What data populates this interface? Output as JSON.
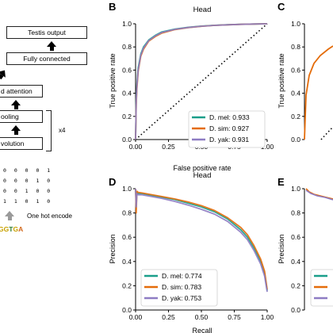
{
  "architecture": {
    "blocks": [
      "Testis output",
      "Fully connected",
      "d attention",
      "ooling",
      "volution"
    ],
    "repeat_label": "x4",
    "encode_label": "One hot encode",
    "matrix_rows": [
      "0 0 0 0 1",
      "0 0 0 1 0",
      "0 0 1 0 0",
      "1 1 0 1 0"
    ],
    "sequence": [
      {
        "base": "G",
        "color": "#c8a100"
      },
      {
        "base": "G",
        "color": "#c8a100"
      },
      {
        "base": "T",
        "color": "#2e7d32"
      },
      {
        "base": "G",
        "color": "#c8a100"
      },
      {
        "base": "A",
        "color": "#d2691e"
      }
    ]
  },
  "panels": {
    "B": {
      "letter": "B",
      "title": "Head",
      "legend": [
        "D. mel: 0.933",
        "D. sim: 0.927",
        "D. yak: 0.931"
      ]
    },
    "C": {
      "letter": "C"
    },
    "D": {
      "letter": "D",
      "title": "Head",
      "legend": [
        "D. mel: 0.774",
        "D. sim: 0.783",
        "D. yak: 0.753"
      ]
    },
    "E": {
      "letter": "E"
    }
  },
  "colors": {
    "d_mel": "#1a9e8a",
    "d_sim": "#e46c0a",
    "d_yak": "#8e7cc3"
  },
  "chart_data": [
    {
      "type": "line",
      "panel": "B",
      "title": "Head",
      "xlabel": "False positive rate",
      "ylabel": "True positive rate",
      "xlim": [
        0,
        1
      ],
      "ylim": [
        0,
        1
      ],
      "xticks": [
        "0.00",
        "0.25",
        "0.50",
        "0.75",
        "1.00"
      ],
      "yticks": [
        "0.0",
        "0.2",
        "0.4",
        "0.6",
        "0.8",
        "1.0"
      ],
      "legend_position": "bottom-right",
      "series": [
        {
          "name": "D. mel: 0.933",
          "x": [
            0,
            0.005,
            0.01,
            0.02,
            0.04,
            0.06,
            0.1,
            0.15,
            0.2,
            0.3,
            0.4,
            0.5,
            0.6,
            0.7,
            0.8,
            0.9,
            1.0
          ],
          "y": [
            0,
            0.35,
            0.48,
            0.62,
            0.74,
            0.8,
            0.86,
            0.9,
            0.93,
            0.955,
            0.97,
            0.98,
            0.987,
            0.992,
            0.996,
            0.998,
            1.0
          ]
        },
        {
          "name": "D. sim: 0.927",
          "x": [
            0,
            0.005,
            0.01,
            0.02,
            0.04,
            0.06,
            0.1,
            0.15,
            0.2,
            0.3,
            0.4,
            0.5,
            0.6,
            0.7,
            0.8,
            0.9,
            1.0
          ],
          "y": [
            0,
            0.3,
            0.44,
            0.59,
            0.72,
            0.78,
            0.85,
            0.89,
            0.92,
            0.95,
            0.967,
            0.978,
            0.986,
            0.991,
            0.995,
            0.998,
            1.0
          ]
        },
        {
          "name": "D. yak: 0.931",
          "x": [
            0,
            0.005,
            0.01,
            0.02,
            0.04,
            0.06,
            0.1,
            0.15,
            0.2,
            0.3,
            0.4,
            0.5,
            0.6,
            0.7,
            0.8,
            0.9,
            1.0
          ],
          "y": [
            0,
            0.32,
            0.46,
            0.6,
            0.73,
            0.79,
            0.855,
            0.895,
            0.925,
            0.952,
            0.968,
            0.979,
            0.986,
            0.991,
            0.995,
            0.998,
            1.0
          ]
        }
      ],
      "reference_line": {
        "x": [
          0,
          1
        ],
        "y": [
          0,
          1
        ],
        "style": "dotted"
      }
    },
    {
      "type": "line",
      "panel": "D",
      "title": "Head",
      "xlabel": "Recall",
      "ylabel": "Precision",
      "xlim": [
        0,
        1
      ],
      "ylim": [
        0,
        1
      ],
      "xticks": [
        "0.00",
        "0.25",
        "0.50",
        "0.75",
        "1.00"
      ],
      "yticks": [
        "0.0",
        "0.2",
        "0.4",
        "0.6",
        "0.8",
        "1.0"
      ],
      "legend_position": "bottom-left",
      "series": [
        {
          "name": "D. mel: 0.774",
          "x": [
            0,
            0.005,
            0.01,
            0.02,
            0.05,
            0.1,
            0.2,
            0.3,
            0.4,
            0.5,
            0.6,
            0.7,
            0.8,
            0.85,
            0.9,
            0.95,
            0.98,
            1.0
          ],
          "y": [
            1.0,
            0.88,
            0.97,
            0.96,
            0.96,
            0.95,
            0.93,
            0.91,
            0.88,
            0.85,
            0.81,
            0.75,
            0.66,
            0.6,
            0.51,
            0.4,
            0.3,
            0.16
          ]
        },
        {
          "name": "D. sim: 0.783",
          "x": [
            0,
            0.005,
            0.01,
            0.02,
            0.05,
            0.1,
            0.2,
            0.3,
            0.4,
            0.5,
            0.6,
            0.7,
            0.8,
            0.85,
            0.9,
            0.95,
            0.98,
            1.0
          ],
          "y": [
            1.0,
            0.8,
            0.98,
            0.97,
            0.965,
            0.955,
            0.935,
            0.915,
            0.89,
            0.86,
            0.82,
            0.76,
            0.68,
            0.62,
            0.53,
            0.42,
            0.32,
            0.17
          ]
        },
        {
          "name": "D. yak: 0.753",
          "x": [
            0,
            0.005,
            0.01,
            0.02,
            0.05,
            0.1,
            0.2,
            0.3,
            0.4,
            0.5,
            0.6,
            0.7,
            0.8,
            0.85,
            0.9,
            0.95,
            0.98,
            1.0
          ],
          "y": [
            1.0,
            0.85,
            0.96,
            0.95,
            0.95,
            0.94,
            0.92,
            0.895,
            0.865,
            0.83,
            0.79,
            0.73,
            0.64,
            0.58,
            0.49,
            0.38,
            0.28,
            0.15
          ]
        }
      ]
    },
    {
      "type": "line",
      "panel": "C",
      "ylabel": "True positive rate",
      "ylim": [
        0,
        1
      ],
      "yticks": [
        "0.0",
        "0.2",
        "0.4",
        "0.6",
        "0.8",
        "1.0"
      ]
    },
    {
      "type": "line",
      "panel": "E",
      "ylabel": "Precision",
      "ylim": [
        0,
        1
      ],
      "yticks": [
        "0.0",
        "0.2",
        "0.4",
        "0.6",
        "0.8",
        "1.0"
      ]
    }
  ]
}
